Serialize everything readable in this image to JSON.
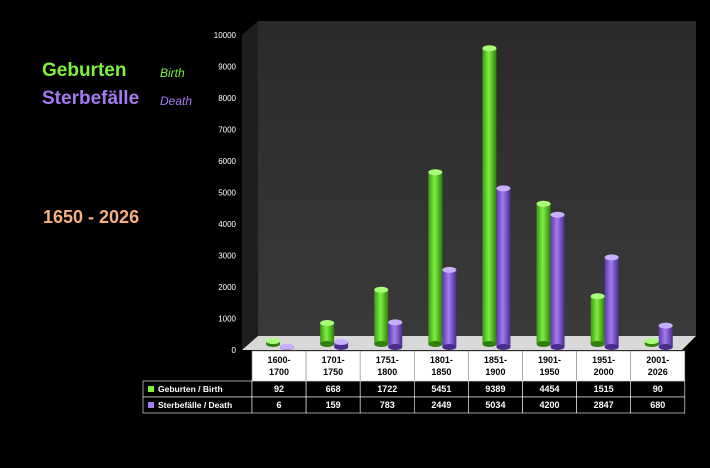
{
  "colors": {
    "birth": "#7ef040",
    "death": "#a47af0",
    "range": "#f5b080",
    "wall": "#3a3a3a",
    "floor": "#d8d8d8"
  },
  "legend": {
    "birth_de": "Geburten",
    "birth_en": "Birth",
    "death_de": "Sterbefälle",
    "death_en": "Death"
  },
  "range_label": "1650 - 2026",
  "chart_data": {
    "type": "bar",
    "title": "",
    "xlabel": "",
    "ylabel": "",
    "ylim": [
      0,
      10000
    ],
    "yticks": [
      "0",
      "1000",
      "2000",
      "3000",
      "4000",
      "5000",
      "6000",
      "7000",
      "8000",
      "9000",
      "10000"
    ],
    "categories": [
      [
        "1600-",
        "1700"
      ],
      [
        "1701-",
        "1750"
      ],
      [
        "1751-",
        "1800"
      ],
      [
        "1801-",
        "1850"
      ],
      [
        "1851-",
        "1900"
      ],
      [
        "1901-",
        "1950"
      ],
      [
        "1951-",
        "2000"
      ],
      [
        "2001-",
        "2026"
      ]
    ],
    "series": [
      {
        "name": "Geburten / Birth",
        "values": [
          92,
          668,
          1722,
          5451,
          9389,
          4454,
          1515,
          90
        ]
      },
      {
        "name": "Sterbefälle / Death",
        "values": [
          6,
          159,
          783,
          2449,
          5034,
          4200,
          2847,
          680
        ]
      }
    ],
    "grid": false,
    "legend_position": "left"
  }
}
